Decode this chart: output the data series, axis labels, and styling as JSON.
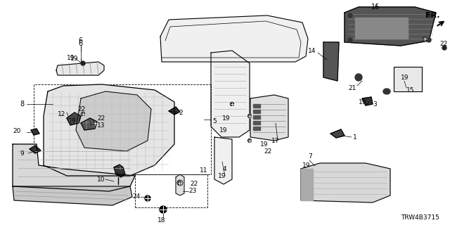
{
  "background_color": "#ffffff",
  "line_color": "#000000",
  "text_color": "#000000",
  "diagram_id": "TRW4B3715",
  "fig_width": 6.4,
  "fig_height": 3.2,
  "dpi": 100
}
